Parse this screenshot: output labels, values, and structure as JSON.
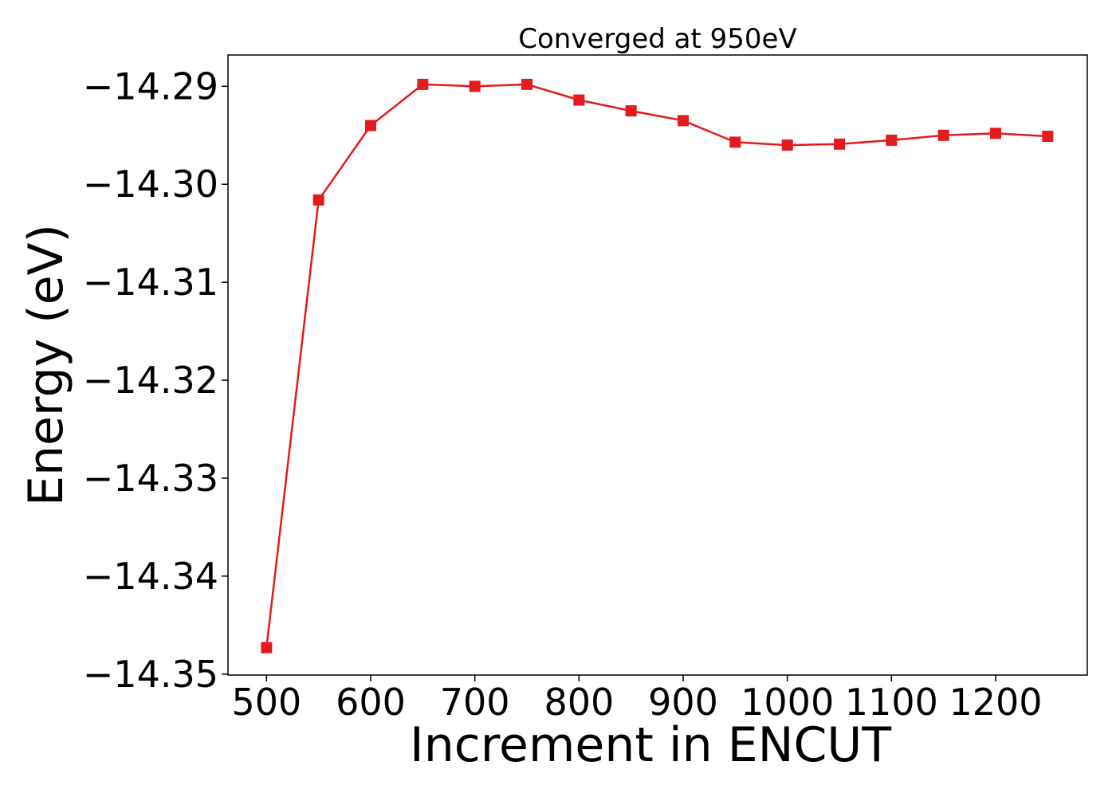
{
  "chart_data": {
    "type": "line",
    "title": "Converged at 950eV",
    "xlabel": "Increment in ENCUT",
    "ylabel": "Energy (eV)",
    "x": [
      500,
      550,
      600,
      650,
      700,
      750,
      800,
      850,
      900,
      950,
      1000,
      1050,
      1100,
      1150,
      1200,
      1250
    ],
    "series": [
      {
        "values": [
          -14.3473,
          -14.3016,
          -14.294,
          -14.2898,
          -14.29,
          -14.2898,
          -14.2914,
          -14.2925,
          -14.2935,
          -14.2957,
          -14.296,
          -14.2959,
          -14.2955,
          -14.295,
          -14.2948,
          -14.2951
        ],
        "color": "#e41a1c",
        "marker": "square"
      }
    ],
    "xticks": [
      500,
      600,
      700,
      800,
      900,
      1000,
      1100,
      1200
    ],
    "xtick_labels": [
      "500",
      "600",
      "700",
      "800",
      "900",
      "1000",
      "1100",
      "1200"
    ],
    "yticks": [
      -14.29,
      -14.3,
      -14.31,
      -14.32,
      -14.33,
      -14.34,
      -14.35
    ],
    "ytick_labels": [
      "−14.29",
      "−14.30",
      "−14.31",
      "−14.32",
      "−14.33",
      "−14.34",
      "−14.35"
    ],
    "xlim": [
      463,
      1288
    ],
    "ylim": [
      -14.3501,
      -14.2868
    ],
    "grid": false,
    "legend": "none"
  }
}
